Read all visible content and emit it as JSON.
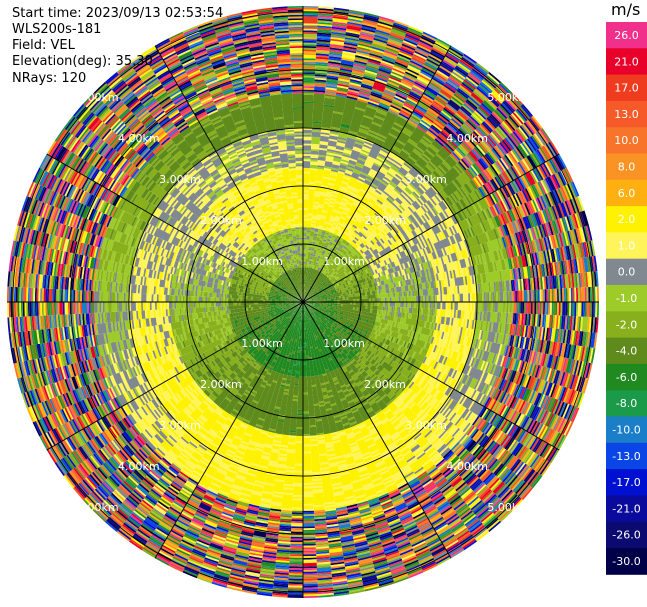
{
  "header": {
    "start_time": "Start time: 2023/09/13 02:53:54",
    "instrument": "WLS200s-181",
    "field": "Field: VEL",
    "elevation": "Elevation(deg): 35.30",
    "nrays": "NRays: 120"
  },
  "colorbar": {
    "unit": "m/s",
    "entries": [
      {
        "label": "26.0",
        "color": "#f0308a"
      },
      {
        "label": "21.0",
        "color": "#e8002a"
      },
      {
        "label": "17.0",
        "color": "#f03c1e"
      },
      {
        "label": "13.0",
        "color": "#f55a28"
      },
      {
        "label": "10.0",
        "color": "#f8742a"
      },
      {
        "label": "8.0",
        "color": "#fa9224"
      },
      {
        "label": "6.0",
        "color": "#fdb010"
      },
      {
        "label": "2.0",
        "color": "#fff200"
      },
      {
        "label": "1.0",
        "color": "#fff45a"
      },
      {
        "label": "0.0",
        "color": "#808890"
      },
      {
        "label": "-1.0",
        "color": "#9dcb2a"
      },
      {
        "label": "-2.0",
        "color": "#88b01c"
      },
      {
        "label": "-4.0",
        "color": "#5f8a1c"
      },
      {
        "label": "-6.0",
        "color": "#208a20"
      },
      {
        "label": "-8.0",
        "color": "#1b9a4a"
      },
      {
        "label": "-10.0",
        "color": "#1a7ec8"
      },
      {
        "label": "-13.0",
        "color": "#0a46e6"
      },
      {
        "label": "-17.0",
        "color": "#0010d0"
      },
      {
        "label": "-21.0",
        "color": "#0a0a9c"
      },
      {
        "label": "-26.0",
        "color": "#0a0a70"
      },
      {
        "label": "-30.0",
        "color": "#000048"
      }
    ]
  },
  "chart_data": {
    "type": "ppi",
    "field": "VEL",
    "unit": "m/s",
    "n_rays": 120,
    "elevation_deg": 35.3,
    "ranges_km": [
      1.0,
      2.0,
      3.0,
      4.0,
      5.0
    ],
    "range_rings": [
      {
        "range_km": 1.0,
        "label": "1.00km"
      },
      {
        "range_km": 2.0,
        "label": "2.00km"
      },
      {
        "range_km": 3.0,
        "label": "3.00km"
      },
      {
        "range_km": 4.0,
        "label": "4.00km"
      },
      {
        "range_km": 5.0,
        "label": "5.00km"
      }
    ],
    "max_range_km": 5.1,
    "spoke_azimuths_deg": [
      0,
      30,
      60,
      90,
      120,
      150,
      180,
      210,
      240,
      270,
      300,
      330
    ],
    "velocity_regions": [
      {
        "from_km": 0.0,
        "to_km": 0.6,
        "north_mps": -4.0,
        "south_mps": -6.0
      },
      {
        "from_km": 0.6,
        "to_km": 1.3,
        "north_mps": -1.0,
        "south_mps": -6.0
      },
      {
        "from_km": 1.3,
        "to_km": 2.3,
        "north_mps": 2.0,
        "south_mps": -4.0
      },
      {
        "from_km": 2.3,
        "to_km": 3.0,
        "north_mps": 0.0,
        "south_mps": 2.0
      },
      {
        "from_km": 3.0,
        "to_km": 3.6,
        "north_mps": -4.0,
        "south_mps": 2.0
      },
      {
        "from_km": 3.6,
        "to_km": 5.1,
        "north_mps": "noise",
        "south_mps": "noise"
      }
    ]
  }
}
